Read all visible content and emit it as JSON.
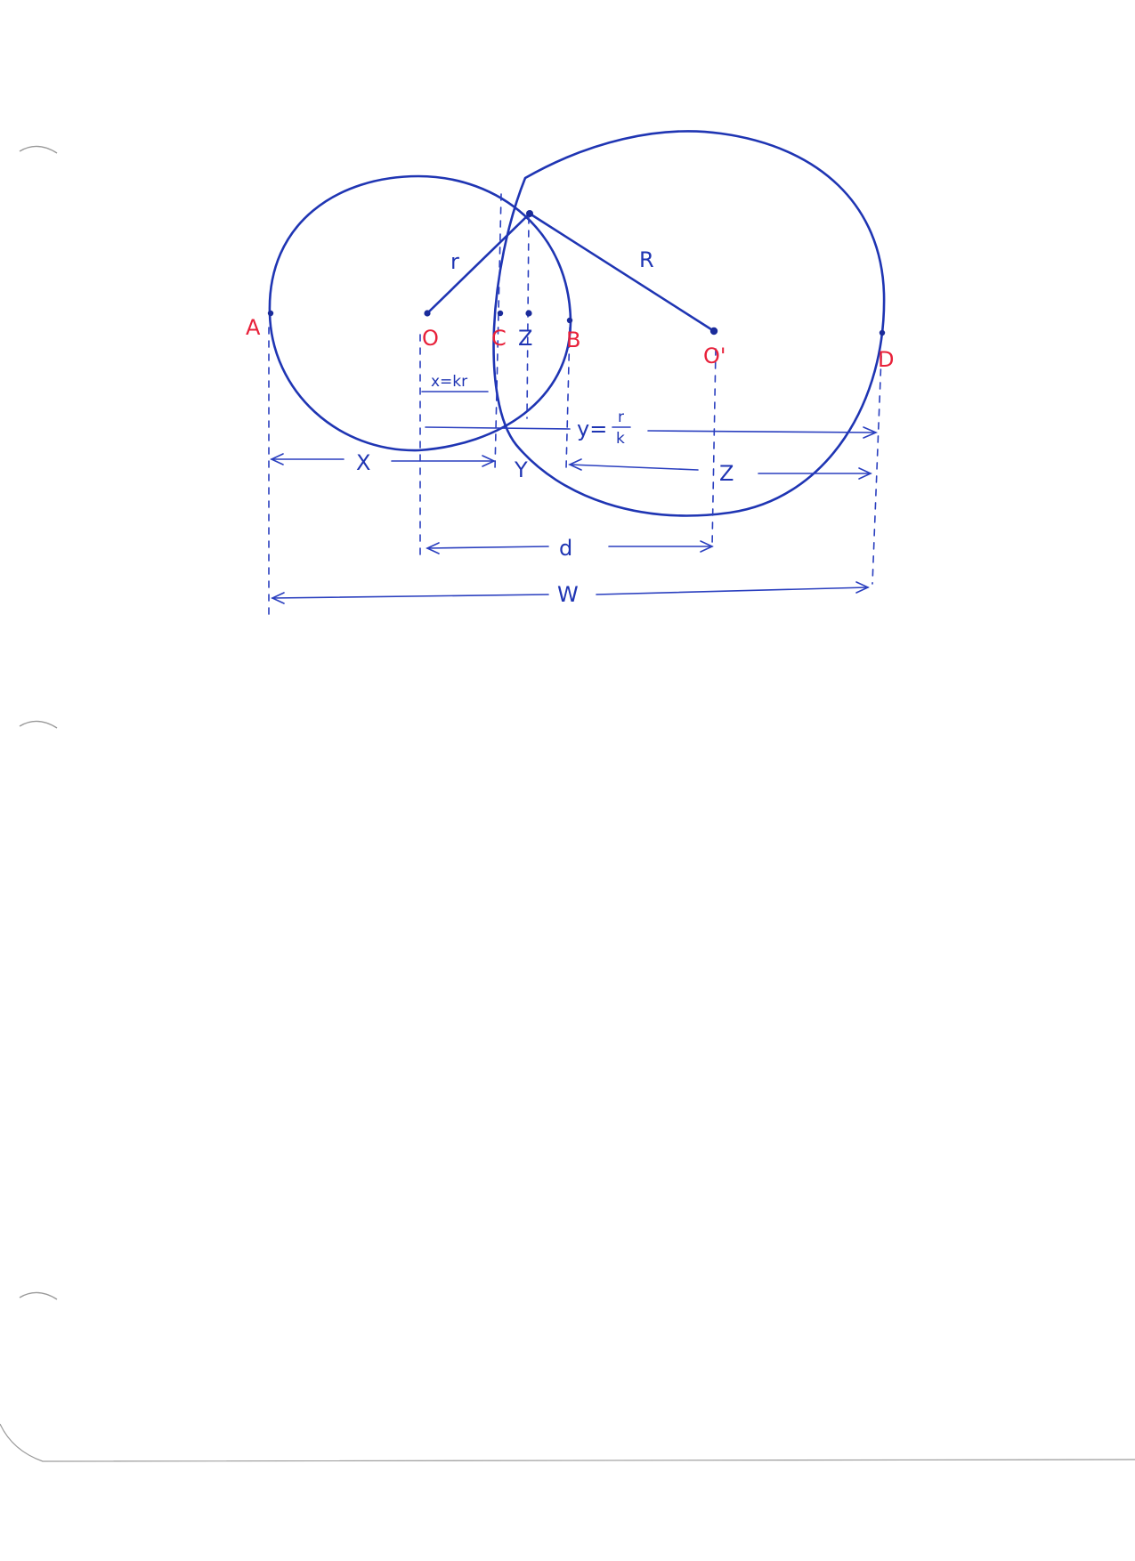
{
  "diagram": {
    "points": {
      "A": "A",
      "O": "O",
      "C": "C",
      "Z": "Z",
      "B": "B",
      "O_prime": "O'",
      "D": "D"
    },
    "radii": {
      "small": "r",
      "large": "R"
    },
    "dimensions": {
      "x_eq": "x=kr",
      "y_eq_lhs": "y=",
      "y_eq_num": "r",
      "y_eq_den": "k",
      "X": "X",
      "Y": "Y",
      "Z": "Z",
      "d": "d",
      "W": "W"
    },
    "colors": {
      "ink": "#1f35b3",
      "point_labels": "#e8213a",
      "paper": "#ffffff"
    }
  }
}
